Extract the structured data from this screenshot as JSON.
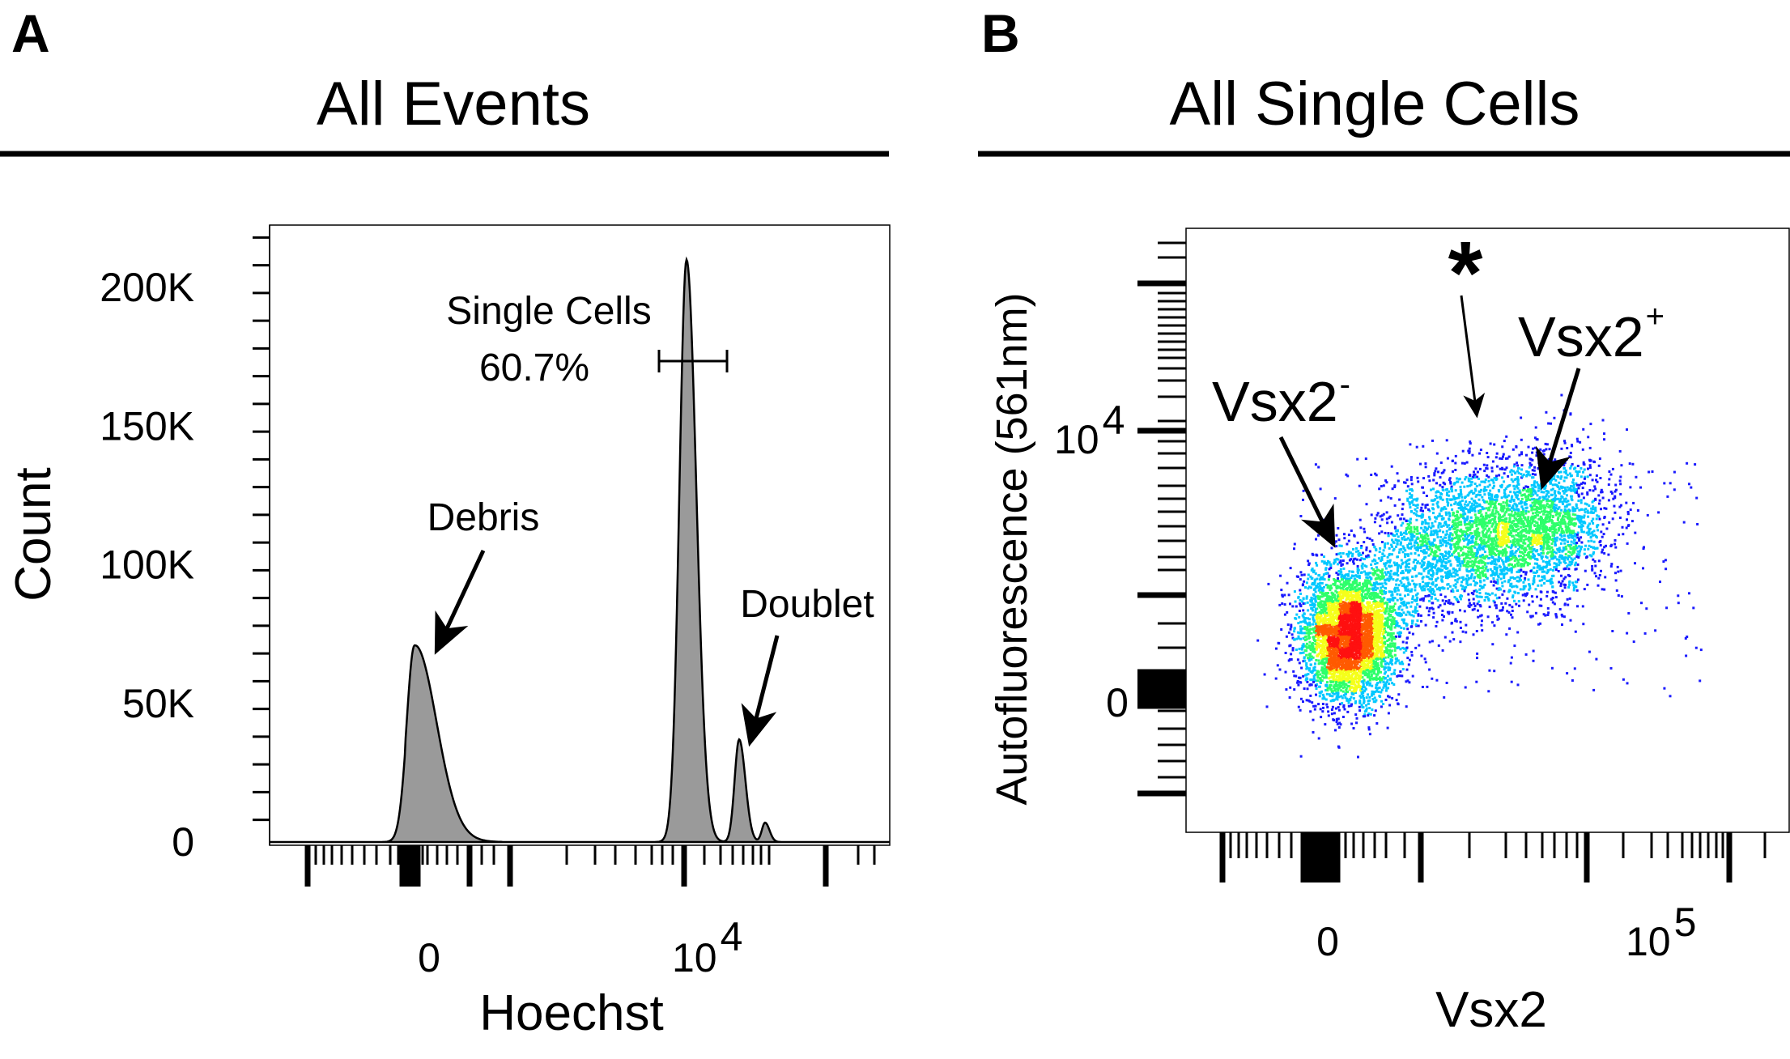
{
  "panels": {
    "a": {
      "letter": "A",
      "title": "All Events"
    },
    "b": {
      "letter": "B",
      "title": "All Single Cells"
    }
  },
  "chart_data": [
    {
      "type": "area",
      "title": "All Events",
      "xlabel": "Hoechst",
      "ylabel": "Count",
      "x_scale": "biexponential",
      "ylim": [
        0,
        220000
      ],
      "yticks": [
        0,
        50000,
        100000,
        150000,
        200000
      ],
      "ytick_labels": [
        "0",
        "50K",
        "100K",
        "150K",
        "200K"
      ],
      "xtick_labels": {
        "zero": "0",
        "decade_base": "10",
        "decade_exp": "4"
      },
      "fill_color": "#9a9a9a",
      "peaks": [
        {
          "label": "Debris",
          "count": 68000
        },
        {
          "label": "Single Cells",
          "count": 210000
        },
        {
          "label": "Doublet",
          "count": 37000
        },
        {
          "label": "",
          "count": 7000
        }
      ],
      "gate": {
        "name": "Single Cells",
        "percent": "60.7%",
        "y": 175000
      }
    },
    {
      "type": "scatter",
      "title": "All Single Cells",
      "xlabel": "Vsx2",
      "ylabel": "Autofluorescence (561nm)",
      "x_scale": "biexponential",
      "y_scale": "biexponential",
      "xtick_labels": {
        "zero": "0",
        "decade_base": "10",
        "decade_exp": "5"
      },
      "ytick_labels": {
        "zero": "0",
        "decade_base": "10",
        "decade_exp": "4"
      },
      "colormap": [
        "#1a1aff",
        "#00c8ff",
        "#2dff6a",
        "#f5ff1a",
        "#ff5a00",
        "#ff1010"
      ],
      "annotations": [
        {
          "text": "Vsx2",
          "sup": "-"
        },
        {
          "text": "Vsx2",
          "sup": "+"
        },
        {
          "text": "*",
          "sup": ""
        }
      ]
    }
  ]
}
